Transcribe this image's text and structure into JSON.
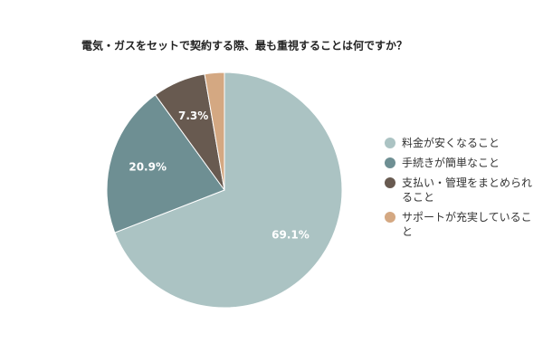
{
  "chart_data": {
    "type": "pie",
    "title": "電気・ガスをセットで契約する際、最も重視することは何ですか？",
    "categories": [
      "料金が安くなること",
      "手続きが簡単なこと",
      "支払い・管理をまとめられること",
      "サポートが充実していること"
    ],
    "values": [
      69.1,
      20.9,
      7.3,
      2.7
    ],
    "value_labels": [
      "69.1%",
      "20.9%",
      "7.3%",
      null
    ],
    "colors": [
      "#abc3c3",
      "#6e8f93",
      "#685a50",
      "#d4a882"
    ],
    "legend": "right"
  }
}
